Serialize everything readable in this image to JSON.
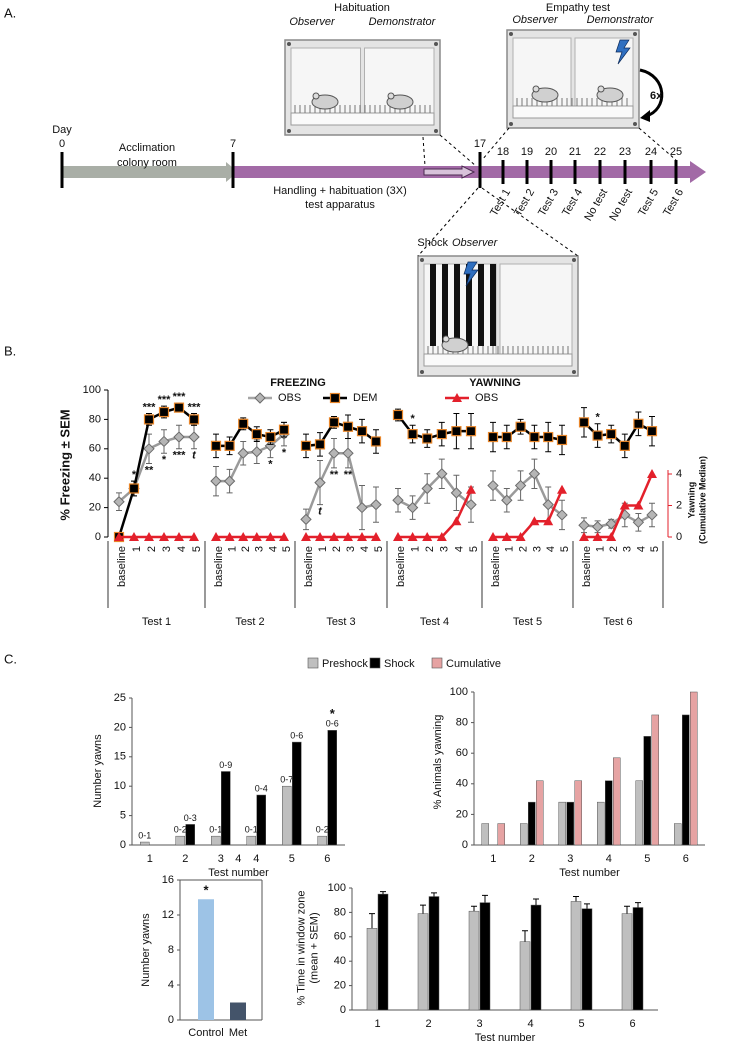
{
  "timeline": {
    "panel_label": "A.",
    "day_label": "Day",
    "days": [
      0,
      7,
      17,
      18,
      19,
      20,
      21,
      22,
      23,
      24,
      25
    ],
    "acclimation": [
      "Acclimation",
      "colony room"
    ],
    "handling": [
      "Handling + habituation (3X)",
      "test apparatus"
    ],
    "sessions": [
      "Test 1",
      "Test 2",
      "Test 3",
      "Test 4",
      "No test",
      "No test",
      "Test 5",
      "Test 6"
    ],
    "habituation_cage": {
      "title": "Habituation",
      "observer": "Observer",
      "demonstrator": "Demonstrator"
    },
    "empathy_cage": {
      "title": "Empathy test",
      "observer": "Observer",
      "demonstrator": "Demonstrator",
      "repeats": "6x"
    },
    "shock_cage": {
      "title": "Shock",
      "observer": "Observer"
    }
  },
  "chart_data": [
    {
      "type": "line",
      "panel_label": "B.",
      "ylabel": "% Freezing ± SEM",
      "y2label": [
        "Yawning",
        "(Cumulative Median)"
      ],
      "legend_groups": [
        "FREEZING",
        "YAWNING"
      ],
      "categories": [
        "baseline",
        "1",
        "2",
        "3",
        "4",
        "5"
      ],
      "ylim": [
        0,
        100
      ],
      "yticks": [
        0,
        20,
        40,
        60,
        80,
        100
      ],
      "y2lim": [
        0,
        4
      ],
      "y2ticks": [
        0,
        2,
        4
      ],
      "series": [
        {
          "name": "OBS",
          "group": 0,
          "color": "#a6a6a6",
          "marker": "diamond"
        },
        {
          "name": "DEM",
          "group": 0,
          "color": "#000000",
          "marker": "square"
        },
        {
          "name": "OBS",
          "group": 1,
          "color": "#e3202b",
          "marker": "triangle",
          "axis": "y2"
        }
      ],
      "facets": [
        {
          "title": "Test 1",
          "series": [
            {
              "values": [
                24,
                33,
                60,
                65,
                68,
                68
              ],
              "errors": [
                6,
                5,
                10,
                8,
                8,
                8
              ]
            },
            {
              "values": [
                0,
                33,
                80,
                85,
                88,
                80
              ],
              "errors": [
                0,
                5,
                4,
                4,
                3,
                4
              ]
            },
            {
              "values": [
                0,
                0,
                0,
                0,
                0,
                0
              ]
            }
          ],
          "annotations": [
            {
              "text": "*",
              "series": 1,
              "index": 1
            },
            {
              "text": "***",
              "series": 1,
              "index": 2
            },
            {
              "text": "***",
              "series": 1,
              "index": 3
            },
            {
              "text": "***",
              "series": 1,
              "index": 4
            },
            {
              "text": "***",
              "series": 1,
              "index": 5
            },
            {
              "text": "**",
              "series": 0,
              "index": 2
            },
            {
              "text": "*",
              "series": 0,
              "index": 3
            },
            {
              "text": "***",
              "series": 0,
              "index": 4
            },
            {
              "text": "t",
              "series": 0,
              "index": 5
            }
          ]
        },
        {
          "title": "Test 2",
          "series": [
            {
              "values": [
                38,
                38,
                57,
                58,
                62,
                70
              ],
              "errors": [
                10,
                8,
                8,
                8,
                8,
                8
              ]
            },
            {
              "values": [
                62,
                62,
                77,
                70,
                68,
                73
              ],
              "errors": [
                8,
                6,
                4,
                5,
                5,
                5
              ]
            },
            {
              "values": [
                0,
                0,
                0,
                0,
                0,
                0
              ]
            }
          ],
          "annotations": [
            {
              "text": "*",
              "series": 0,
              "index": 4
            },
            {
              "text": "*",
              "series": 0,
              "index": 5
            }
          ]
        },
        {
          "title": "Test 3",
          "series": [
            {
              "values": [
                12,
                37,
                57,
                57,
                20,
                22
              ],
              "errors": [
                7,
                15,
                10,
                10,
                15,
                12
              ]
            },
            {
              "values": [
                62,
                63,
                78,
                75,
                72,
                65
              ],
              "errors": [
                8,
                8,
                4,
                8,
                8,
                8
              ]
            },
            {
              "values": [
                0,
                0,
                0,
                0,
                0,
                0
              ]
            }
          ],
          "annotations": [
            {
              "text": "t",
              "series": 0,
              "index": 1
            },
            {
              "text": "**",
              "series": 0,
              "index": 2
            },
            {
              "text": "**",
              "series": 0,
              "index": 3
            }
          ]
        },
        {
          "title": "Test 4",
          "series": [
            {
              "values": [
                25,
                20,
                33,
                43,
                30,
                22
              ],
              "errors": [
                8,
                8,
                10,
                10,
                12,
                12
              ]
            },
            {
              "values": [
                83,
                70,
                67,
                70,
                72,
                72
              ],
              "errors": [
                4,
                6,
                6,
                8,
                12,
                12
              ]
            },
            {
              "values": [
                0,
                0,
                0,
                0,
                1,
                3
              ]
            }
          ],
          "annotations": [
            {
              "text": "*",
              "series": 1,
              "index": 1
            }
          ]
        },
        {
          "title": "Test 5",
          "series": [
            {
              "values": [
                35,
                25,
                35,
                43,
                22,
                15
              ],
              "errors": [
                10,
                8,
                10,
                10,
                12,
                10
              ]
            },
            {
              "values": [
                68,
                68,
                75,
                68,
                68,
                66
              ],
              "errors": [
                10,
                8,
                5,
                8,
                10,
                10
              ]
            },
            {
              "values": [
                0,
                0,
                0,
                1,
                1,
                3
              ]
            }
          ]
        },
        {
          "title": "Test 6",
          "series": [
            {
              "values": [
                8,
                7,
                9,
                15,
                10,
                15
              ],
              "errors": [
                5,
                4,
                3,
                8,
                6,
                8
              ]
            },
            {
              "values": [
                78,
                69,
                70,
                62,
                77,
                72
              ],
              "errors": [
                10,
                8,
                6,
                8,
                8,
                10
              ]
            },
            {
              "values": [
                0,
                0,
                0,
                2,
                2,
                4
              ]
            }
          ],
          "annotations": [
            {
              "text": "*",
              "series": 1,
              "index": 1
            }
          ]
        }
      ]
    },
    {
      "type": "bar",
      "panel_label": "C.",
      "ylabel": "Number yawns",
      "xlabel": "Test number",
      "categories": [
        1,
        2,
        3,
        4,
        5,
        6
      ],
      "ylim": [
        0,
        25
      ],
      "yticks": [
        0,
        5,
        10,
        15,
        20,
        25
      ],
      "series": [
        {
          "color": "#bfbfbf",
          "values": [
            0.5,
            1.5,
            1.5,
            1.5,
            10,
            1.5
          ],
          "range_labels": [
            "0-1",
            "0-2",
            "0-1",
            "0-1",
            "0-7",
            "0-2"
          ]
        },
        {
          "color": "#000000",
          "values": [
            0,
            3.5,
            12.5,
            8.5,
            17.5,
            19.5
          ],
          "range_labels": [
            null,
            "0-3",
            "0-9",
            "0-4",
            "0-6",
            "0-6"
          ]
        }
      ],
      "annotations": [
        {
          "text": "*",
          "series": 1,
          "index": 5
        }
      ],
      "stray_label": "4"
    },
    {
      "type": "bar",
      "ylabel": "% Animals yawning",
      "xlabel": "Test number",
      "categories": [
        1,
        2,
        3,
        4,
        5,
        6
      ],
      "ylim": [
        0,
        100
      ],
      "yticks": [
        0,
        20,
        40,
        60,
        80,
        100
      ],
      "series": [
        {
          "name": "Preshock",
          "color": "#bfbfbf",
          "values": [
            14,
            14,
            28,
            28,
            42,
            14
          ]
        },
        {
          "name": "Shock",
          "color": "#000000",
          "values": [
            0,
            28,
            28,
            42,
            71,
            85
          ]
        },
        {
          "name": "Cumulative",
          "color": "#e6a3a3",
          "values": [
            14,
            42,
            42,
            57,
            85,
            100
          ]
        }
      ]
    },
    {
      "type": "bar",
      "ylabel": "Number yawns",
      "categories": [
        "Control",
        "Met"
      ],
      "values": [
        13.8,
        2
      ],
      "colors": [
        "#9dc3e6",
        "#44546a"
      ],
      "ylim": [
        0,
        16
      ],
      "yticks": [
        0,
        4,
        8,
        12,
        16
      ],
      "annotations": [
        {
          "text": "*",
          "index": 0
        }
      ]
    },
    {
      "type": "bar",
      "ylabel": [
        "% Time in window zone",
        "(mean + SEM)"
      ],
      "xlabel": "Test number",
      "categories": [
        1,
        2,
        3,
        4,
        5,
        6
      ],
      "ylim": [
        0,
        100
      ],
      "yticks": [
        0,
        20,
        40,
        60,
        80,
        100
      ],
      "series": [
        {
          "color": "#bfbfbf",
          "values": [
            67,
            79,
            81,
            56,
            89,
            79
          ],
          "errors": [
            12,
            7,
            4,
            9,
            4,
            6
          ]
        },
        {
          "color": "#000000",
          "values": [
            95,
            93,
            88,
            86,
            83,
            84
          ],
          "errors": [
            2,
            3,
            6,
            5,
            4,
            4
          ]
        }
      ]
    }
  ]
}
